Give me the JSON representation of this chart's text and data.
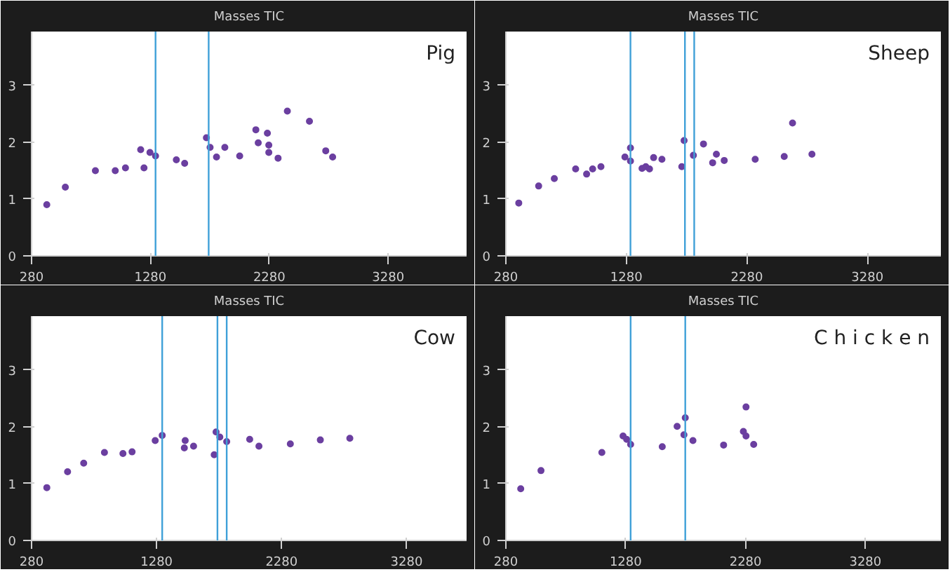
{
  "chart_data": [
    {
      "type": "scatter",
      "title": "Masses TIC",
      "annotations": [
        "Pig"
      ],
      "color": "#6b3fa0",
      "marker": "circle",
      "xlim": [
        280,
        3940
      ],
      "ylim": [
        0,
        3.95
      ],
      "xticks": [
        280,
        1280,
        2280,
        3280
      ],
      "yticks": [
        0,
        1,
        2,
        3
      ],
      "x": [
        408,
        564,
        817,
        984,
        1070,
        1198,
        1226,
        1276,
        1323,
        1498,
        1568,
        1751,
        1782,
        1836,
        1906,
        2031,
        2167,
        2187,
        2264,
        2276,
        2276,
        2354,
        2432,
        2618,
        2755,
        2813
      ],
      "values": [
        0.9,
        1.21,
        1.5,
        1.5,
        1.55,
        1.87,
        1.55,
        1.82,
        1.76,
        1.69,
        1.63,
        2.08,
        1.91,
        1.74,
        1.91,
        1.76,
        2.22,
        1.99,
        2.16,
        1.95,
        1.82,
        1.72,
        2.55,
        2.37,
        1.85,
        1.74
      ],
      "ref_lines": [
        {
          "axis": "x",
          "value": 1323,
          "label": null,
          "color": "#3fa0d8"
        },
        {
          "axis": "x",
          "value": 1770,
          "label": null,
          "color": "#3fa0d8"
        }
      ]
    },
    {
      "type": "scatter",
      "title": "Masses TIC",
      "annotations": [
        "Sheep"
      ],
      "color": "#6b3fa0",
      "marker": "circle",
      "xlim": [
        280,
        3890
      ],
      "ylim": [
        0,
        3.95
      ],
      "xticks": [
        280,
        1280,
        2280,
        3280
      ],
      "yticks": [
        0,
        1,
        2,
        3
      ],
      "x": [
        387,
        552,
        682,
        859,
        950,
        1000,
        1069,
        1268,
        1314,
        1314,
        1410,
        1441,
        1472,
        1506,
        1575,
        1740,
        1759,
        1836,
        1920,
        1996,
        2027,
        2092,
        2349,
        2590,
        2659,
        2820
      ],
      "values": [
        0.93,
        1.23,
        1.36,
        1.53,
        1.44,
        1.53,
        1.57,
        1.74,
        1.9,
        1.67,
        1.54,
        1.57,
        1.53,
        1.73,
        1.7,
        1.57,
        2.03,
        1.77,
        1.97,
        1.64,
        1.79,
        1.68,
        1.7,
        1.75,
        2.34,
        1.79
      ],
      "ref_lines": [
        {
          "axis": "x",
          "value": 1314,
          "label": null,
          "color": "#3fa0d8"
        },
        {
          "axis": "x",
          "value": 1766,
          "label": null,
          "color": "#3fa0d8"
        },
        {
          "axis": "x",
          "value": 1843,
          "label": null,
          "color": "#3fa0d8"
        }
      ]
    },
    {
      "type": "scatter",
      "title": "Masses TIC",
      "annotations": [
        "Cow"
      ],
      "color": "#6b3fa0",
      "marker": "circle",
      "xlim": [
        280,
        3760
      ],
      "ylim": [
        0,
        3.95
      ],
      "xticks": [
        280,
        1280,
        2280,
        3280
      ],
      "yticks": [
        0,
        1,
        2,
        3
      ],
      "x": [
        402,
        568,
        697,
        863,
        1011,
        1084,
        1269,
        1325,
        1509,
        1502,
        1576,
        1741,
        1756,
        1786,
        1841,
        2025,
        2099,
        2350,
        2590,
        2826
      ],
      "values": [
        0.93,
        1.21,
        1.36,
        1.55,
        1.53,
        1.56,
        1.76,
        1.85,
        1.76,
        1.63,
        1.66,
        1.51,
        1.91,
        1.82,
        1.74,
        1.78,
        1.66,
        1.7,
        1.77,
        1.8
      ],
      "ref_lines": [
        {
          "axis": "x",
          "value": 1325,
          "label": null,
          "color": "#3fa0d8"
        },
        {
          "axis": "x",
          "value": 1767,
          "label": null,
          "color": "#3fa0d8"
        },
        {
          "axis": "x",
          "value": 1841,
          "label": null,
          "color": "#3fa0d8"
        }
      ]
    },
    {
      "type": "scatter",
      "title": "Masses TIC",
      "annotations": [
        "C h i c k e n"
      ],
      "color": "#6b3fa0",
      "marker": "circle",
      "xlim": [
        280,
        3910
      ],
      "ylim": [
        0,
        3.95
      ],
      "xticks": [
        280,
        1280,
        2280,
        3280
      ],
      "yticks": [
        0,
        1,
        2,
        3
      ],
      "x": [
        404,
        573,
        1081,
        1258,
        1288,
        1321,
        1585,
        1709,
        1777,
        1766,
        1841,
        2097,
        2284,
        2262,
        2284,
        2348
      ],
      "values": [
        0.91,
        1.23,
        1.55,
        1.84,
        1.78,
        1.69,
        1.65,
        2.01,
        2.16,
        1.86,
        1.76,
        1.68,
        2.35,
        1.92,
        1.84,
        1.69
      ],
      "ref_lines": [
        {
          "axis": "x",
          "value": 1321,
          "label": null,
          "color": "#3fa0d8"
        },
        {
          "axis": "x",
          "value": 1777,
          "label": null,
          "color": "#3fa0d8"
        }
      ]
    }
  ]
}
